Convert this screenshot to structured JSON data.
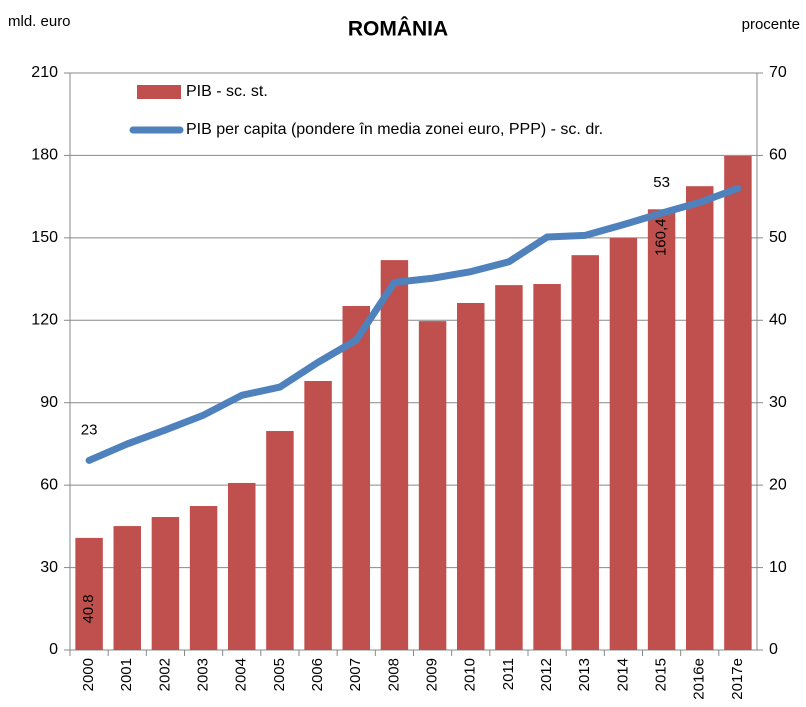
{
  "chart_data": {
    "type": "bar-line",
    "title": "ROMÂNIA",
    "y_label": "mld. euro",
    "y2_label": "procente",
    "categories": [
      "2000",
      "2001",
      "2002",
      "2003",
      "2004",
      "2005",
      "2006",
      "2007",
      "2008",
      "2009",
      "2010",
      "2011",
      "2012",
      "2013",
      "2014",
      "2015",
      "2016e",
      "2017e"
    ],
    "series": [
      {
        "name": "PIB - sc. st.",
        "type": "bar",
        "color": "#c0504d",
        "values": [
          40.8,
          45.1,
          48.4,
          52.4,
          60.8,
          79.7,
          97.9,
          125.2,
          141.9,
          119.7,
          126.3,
          132.8,
          133.2,
          143.7,
          150,
          160.4,
          168.8,
          179.8
        ],
        "value_labels": [
          "40.8",
          null,
          null,
          null,
          null,
          null,
          null,
          null,
          null,
          null,
          null,
          null,
          null,
          null,
          null,
          "160,4",
          null,
          null
        ]
      },
      {
        "name": "PIB per capita (pondere în media zonei euro, PPP) - sc. dr.",
        "type": "line",
        "color": "#4f81bd",
        "axis": "y2",
        "values": [
          23,
          25,
          26.7,
          28.5,
          30.9,
          31.9,
          34.9,
          37.6,
          44.6,
          45.1,
          45.9,
          47.1,
          50.1,
          50.3,
          51.6,
          53,
          54.3,
          56
        ],
        "value_labels": [
          "23",
          null,
          null,
          null,
          null,
          null,
          null,
          null,
          null,
          null,
          null,
          null,
          null,
          null,
          null,
          "53",
          null,
          null
        ]
      }
    ],
    "ylim": [
      0,
      210
    ],
    "yticks": [
      0,
      30,
      60,
      90,
      120,
      150,
      180,
      210
    ],
    "y2lim": [
      0,
      70
    ],
    "y2ticks": [
      0,
      10,
      20,
      30,
      40,
      50,
      60,
      70
    ],
    "grid": true,
    "legend": "top-left"
  }
}
